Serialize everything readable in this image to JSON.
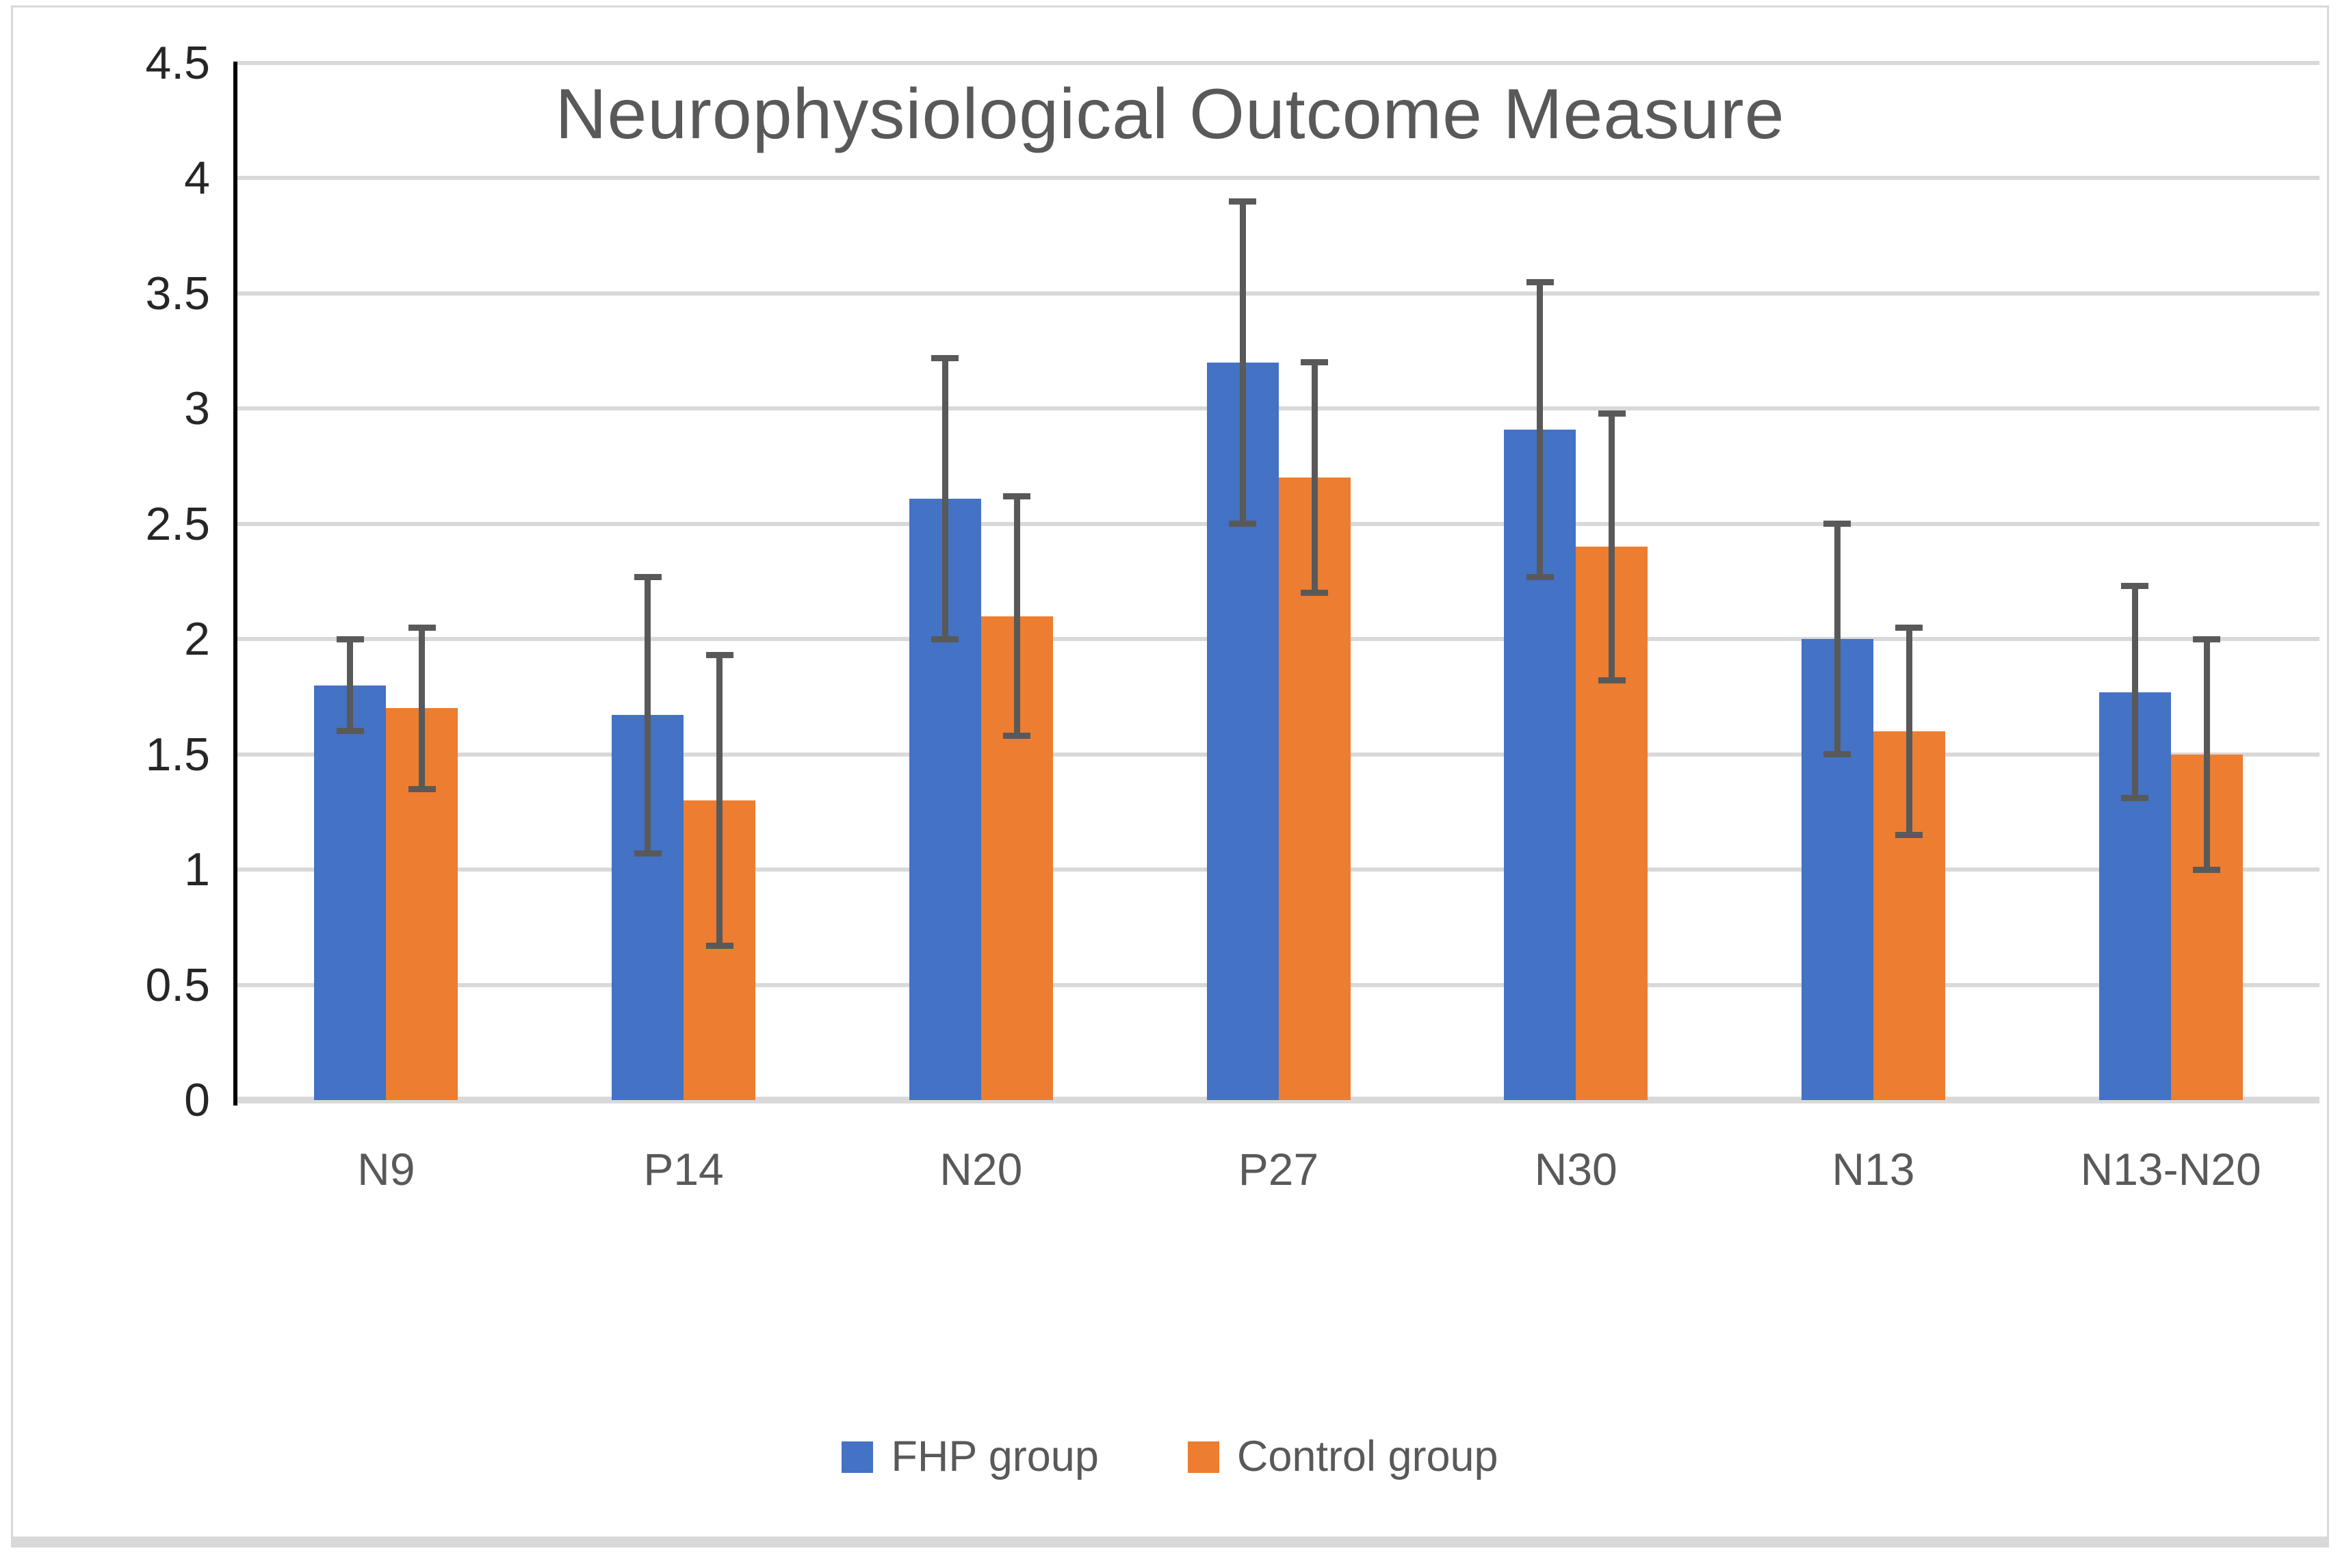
{
  "title": "Neurophysiological Outcome Measure",
  "colors": {
    "series_fhp": "#4472C4",
    "series_control": "#ED7D31",
    "error_bar": "#595959",
    "gridline": "#D9D9D9",
    "axis_line": "#000000",
    "title_text": "#595959",
    "x_label_text": "#595959",
    "y_label_text": "#262626",
    "frame_border": "#D9D9D9"
  },
  "chart_data": {
    "type": "bar",
    "title": "Neurophysiological Outcome Measure",
    "categories": [
      "N9",
      "P14",
      "N20",
      "P27",
      "N30",
      "N13",
      "N13-N20"
    ],
    "series": [
      {
        "name": "FHP group",
        "color": "#4472C4",
        "values": [
          1.8,
          1.67,
          2.61,
          3.2,
          2.91,
          2.0,
          1.77
        ],
        "error_low": [
          1.6,
          1.07,
          2.0,
          2.5,
          2.27,
          1.5,
          1.31
        ],
        "error_high": [
          2.0,
          2.27,
          3.22,
          3.9,
          3.55,
          2.5,
          2.23
        ]
      },
      {
        "name": "Control group",
        "color": "#ED7D31",
        "values": [
          1.7,
          1.3,
          2.1,
          2.7,
          2.4,
          1.6,
          1.5
        ],
        "error_low": [
          1.35,
          0.67,
          1.58,
          2.2,
          1.82,
          1.15,
          1.0
        ],
        "error_high": [
          2.05,
          1.93,
          2.62,
          3.2,
          2.98,
          2.05,
          2.0
        ]
      }
    ],
    "xlabel": "",
    "ylabel": "",
    "ylim": [
      0,
      4.5
    ],
    "ytick_step": 0.5,
    "ytick_labels": [
      "0",
      "0.5",
      "1",
      "1.5",
      "2",
      "2.5",
      "3",
      "3.5",
      "4",
      "4.5"
    ],
    "grid": true,
    "error_bars": true,
    "legend_position": "bottom"
  },
  "legend": {
    "items": [
      {
        "label": "FHP group"
      },
      {
        "label": "Control group"
      }
    ]
  }
}
